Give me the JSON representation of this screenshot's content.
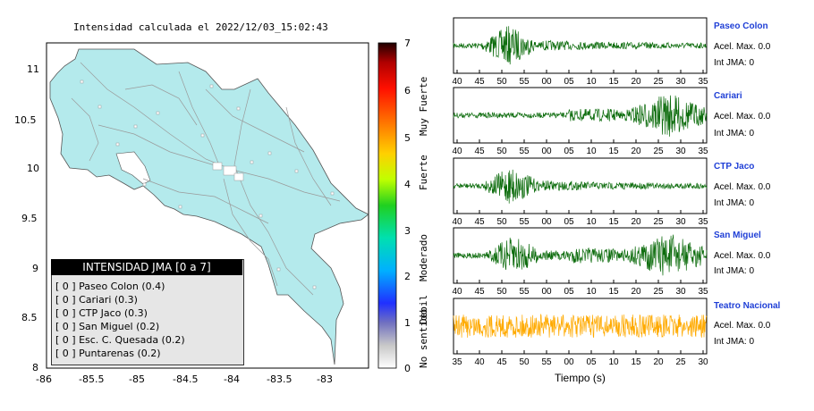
{
  "map": {
    "title": "Intensidad calculada el 2022/12/03_15:02:43",
    "x_ticks": [
      "-86",
      "-85.5",
      "-85",
      "-84.5",
      "-84",
      "-83.5",
      "-83"
    ],
    "y_ticks": [
      "11",
      "10.5",
      "10",
      "9.5",
      "9",
      "8.5",
      "8"
    ]
  },
  "legend": {
    "header": "INTENSIDAD JMA [0 a 7]",
    "rows": [
      "[ 0 ] Paseo Colon (0.4)",
      "[ 0 ] Cariari (0.3)",
      "[ 0 ] CTP Jaco (0.3)",
      "[ 0 ] San Miguel (0.2)",
      "[ 0 ] Esc. C. Quesada (0.2)",
      "[ 0 ] Puntarenas (0.2)"
    ]
  },
  "colorbar": {
    "ticks": [
      "7",
      "6",
      "5",
      "4",
      "3",
      "2",
      "1",
      "0"
    ],
    "labels": [
      "Muy Fuerte",
      "Fuerte",
      "Moderado",
      "Debil",
      "No sentido"
    ]
  },
  "xlabel": "Tiempo (s)",
  "stations": [
    {
      "name": "Paseo Colon",
      "acel": "Acel. Max. 0.0",
      "int": "Int JMA: 0",
      "color": "#0b6b0b",
      "ticks": [
        "40",
        "45",
        "50",
        "55",
        "00",
        "05",
        "10",
        "15",
        "20",
        "25",
        "30",
        "35"
      ],
      "burst_at": 0.22,
      "late_burst": 0
    },
    {
      "name": "Cariari",
      "acel": "Acel. Max. 0.0",
      "int": "Int JMA: 0",
      "color": "#0b6b0b",
      "ticks": [
        "40",
        "45",
        "50",
        "55",
        "00",
        "05",
        "10",
        "15",
        "20",
        "25",
        "30",
        "35"
      ],
      "burst_at": 0,
      "late_burst": 0.85
    },
    {
      "name": "CTP Jaco",
      "acel": "Acel. Max. 0.0",
      "int": "Int JMA: 0",
      "color": "#0b6b0b",
      "ticks": [
        "40",
        "45",
        "50",
        "55",
        "00",
        "05",
        "10",
        "15",
        "20",
        "25",
        "30",
        "35"
      ],
      "burst_at": 0.23,
      "late_burst": 0
    },
    {
      "name": "San Miguel",
      "acel": "Acel. Max. 0.0",
      "int": "Int JMA: 0",
      "color": "#0b6b0b",
      "ticks": [
        "40",
        "45",
        "50",
        "55",
        "00",
        "05",
        "10",
        "15",
        "20",
        "25",
        "30",
        "35"
      ],
      "burst_at": 0.24,
      "late_burst": 0.85
    },
    {
      "name": "Teatro Nacional",
      "acel": "Acel. Max. 0.0",
      "int": "Int JMA: 0",
      "color": "#ffaa00",
      "ticks": [
        "35",
        "40",
        "45",
        "50",
        "55",
        "00",
        "05",
        "10",
        "15",
        "20",
        "25",
        "30"
      ],
      "burst_at": 0,
      "late_burst": 0
    }
  ],
  "chart_data": [
    {
      "type": "map",
      "title": "Intensidad calculada el 2022/12/03_15:02:43",
      "xlim": [
        -86,
        -82.5
      ],
      "ylim": [
        8,
        11.3
      ]
    },
    {
      "type": "line",
      "title": "Paseo Colon",
      "xlabel": "Tiempo (s)"
    },
    {
      "type": "line",
      "title": "Cariari",
      "xlabel": "Tiempo (s)"
    },
    {
      "type": "line",
      "title": "CTP Jaco",
      "xlabel": "Tiempo (s)"
    },
    {
      "type": "line",
      "title": "San Miguel",
      "xlabel": "Tiempo (s)"
    },
    {
      "type": "line",
      "title": "Teatro Nacional",
      "xlabel": "Tiempo (s)"
    }
  ]
}
